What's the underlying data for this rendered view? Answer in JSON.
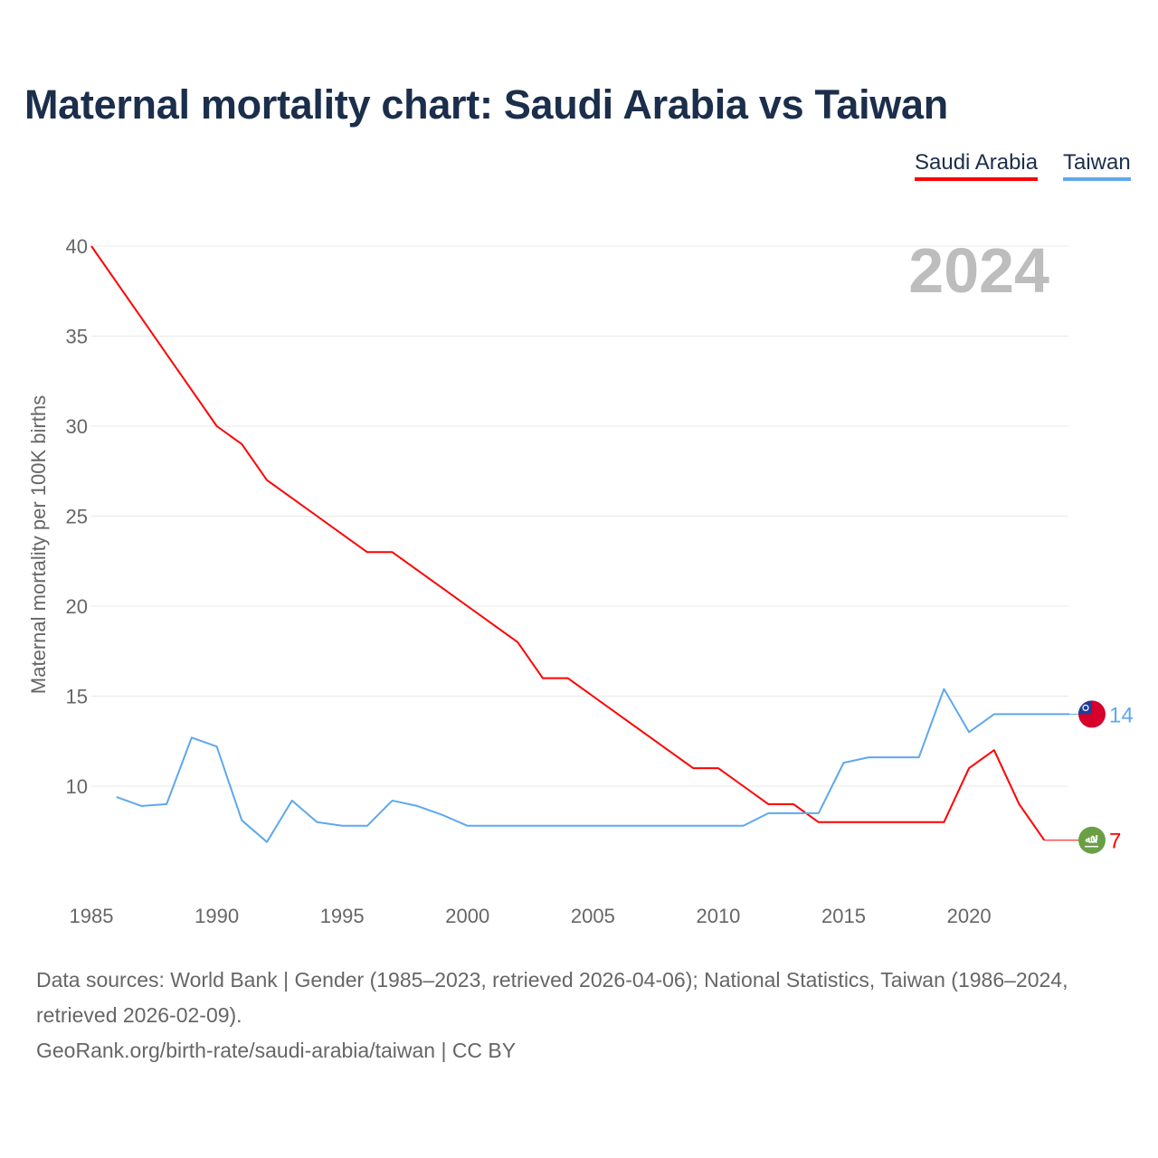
{
  "title": "Maternal mortality chart: Saudi Arabia vs Taiwan",
  "legend": [
    "Saudi Arabia",
    "Taiwan"
  ],
  "footer": {
    "sources": "Data sources: World Bank | Gender (1985–2023, retrieved 2026-04-06); National Statistics, Taiwan (1986–2024, retrieved 2026-02-09).",
    "link": "GeoRank.org/birth-rate/saudi-arabia/taiwan | CC BY"
  },
  "chart_data": {
    "type": "line",
    "title": "Maternal mortality chart: Saudi Arabia vs Taiwan",
    "xlabel": "",
    "ylabel": "Maternal mortality per 100K births",
    "xlim": [
      1985,
      2024
    ],
    "ylim": [
      5,
      40
    ],
    "xticks": [
      1985,
      1990,
      1995,
      2000,
      2005,
      2010,
      2015,
      2020
    ],
    "yticks": [
      10,
      15,
      20,
      25,
      30,
      35,
      40
    ],
    "grid": true,
    "legend_position": "top-right",
    "year_watermark": "2024",
    "series": [
      {
        "name": "Saudi Arabia",
        "color": "#ff0000",
        "end_label": "7",
        "x": [
          1985,
          1986,
          1987,
          1988,
          1989,
          1990,
          1991,
          1992,
          1993,
          1994,
          1995,
          1996,
          1997,
          1998,
          1999,
          2000,
          2001,
          2002,
          2003,
          2004,
          2005,
          2006,
          2007,
          2008,
          2009,
          2010,
          2011,
          2012,
          2013,
          2014,
          2015,
          2016,
          2017,
          2018,
          2019,
          2020,
          2021,
          2022,
          2023
        ],
        "y": [
          40,
          38,
          36,
          34,
          32,
          30,
          29,
          27,
          26,
          25,
          24,
          23,
          23,
          22,
          21,
          20,
          19,
          18,
          16,
          16,
          15,
          14,
          13,
          12,
          11,
          11,
          10,
          9,
          9,
          8,
          8,
          8,
          8,
          8,
          8,
          11,
          12,
          9,
          7
        ]
      },
      {
        "name": "Taiwan",
        "color": "#5ea8ee",
        "end_label": "14",
        "x": [
          1986,
          1987,
          1988,
          1989,
          1990,
          1991,
          1992,
          1993,
          1994,
          1995,
          1996,
          1997,
          1998,
          1999,
          2000,
          2001,
          2002,
          2003,
          2004,
          2005,
          2006,
          2007,
          2008,
          2009,
          2010,
          2011,
          2012,
          2013,
          2014,
          2015,
          2016,
          2017,
          2018,
          2019,
          2020,
          2021,
          2022,
          2023,
          2024
        ],
        "y": [
          9.4,
          8.9,
          9.0,
          12.7,
          12.2,
          8.1,
          6.9,
          9.2,
          8.0,
          7.8,
          7.8,
          9.2,
          8.9,
          8.4,
          7.8,
          7.8,
          7.8,
          7.8,
          7.8,
          7.8,
          7.8,
          7.8,
          7.8,
          7.8,
          7.8,
          7.8,
          8.5,
          8.5,
          8.5,
          11.3,
          11.6,
          11.6,
          11.6,
          15.4,
          13.0,
          14.0,
          14.0,
          14.0,
          14.0
        ]
      }
    ]
  }
}
